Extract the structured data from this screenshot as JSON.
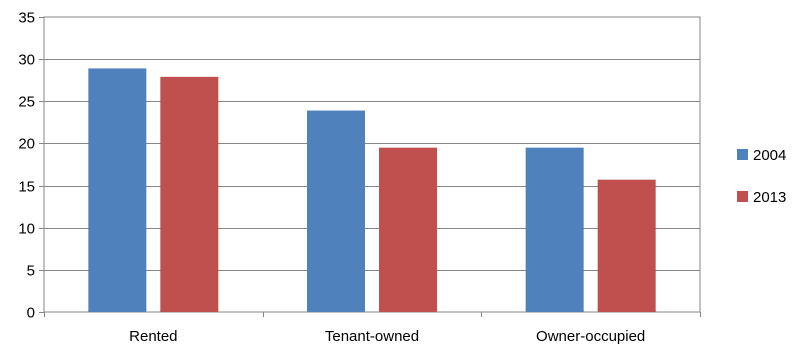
{
  "chart_data": {
    "type": "bar",
    "title": "",
    "xlabel": "",
    "ylabel": "",
    "categories": [
      "Rented",
      "Tenant-owned",
      "Owner-occupied"
    ],
    "series": [
      {
        "name": "2004",
        "values": [
          28.9,
          23.9,
          19.5
        ],
        "color": "#4f81bd"
      },
      {
        "name": "2013",
        "values": [
          27.9,
          19.5,
          15.7
        ],
        "color": "#c0504d"
      }
    ],
    "ylim": [
      0,
      35
    ],
    "yticks": [
      0,
      5,
      10,
      15,
      20,
      25,
      30,
      35
    ],
    "grid": true,
    "legend_position": "right"
  }
}
